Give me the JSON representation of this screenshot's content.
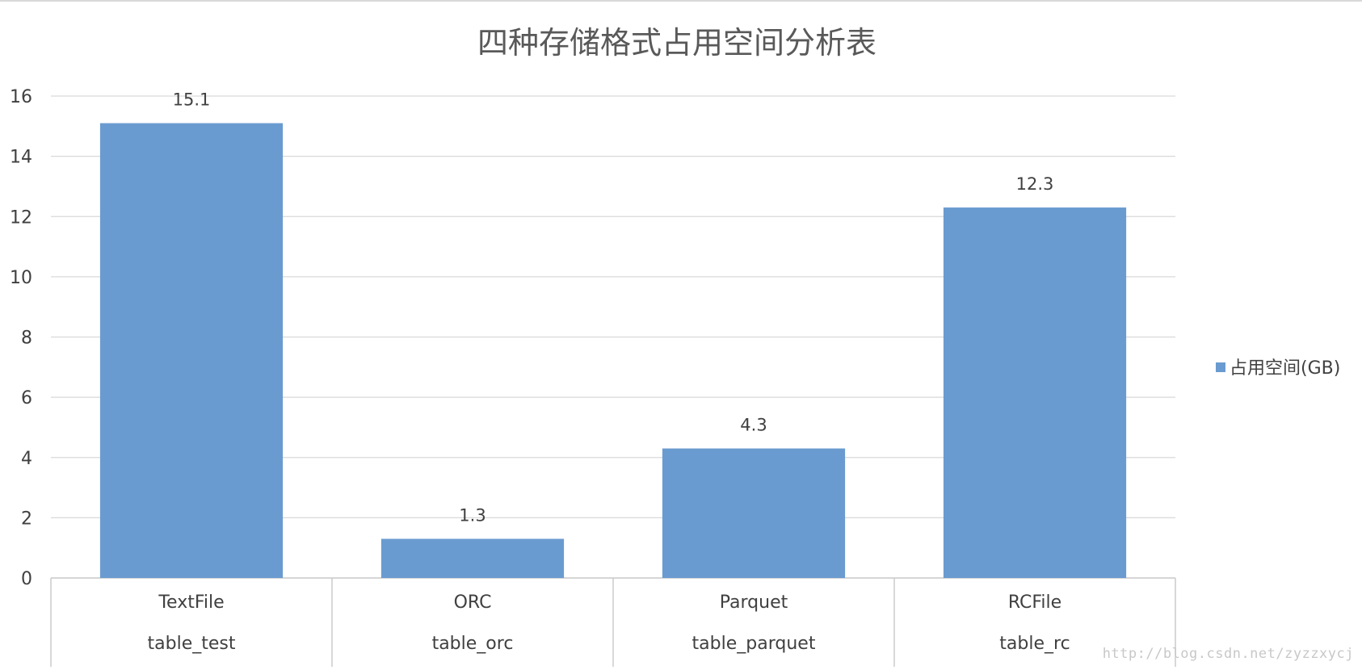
{
  "colors": {
    "bar": "#6a9bd0",
    "grid": "#d9d9d9",
    "axis": "#c8c8c8",
    "text": "#404040",
    "title": "#595959",
    "background": "#ffffff"
  },
  "chart_data": {
    "type": "bar",
    "title": "四种存储格式占用空间分析表",
    "xlabel": "",
    "ylabel": "",
    "categories": [
      [
        "TextFile",
        "table_test"
      ],
      [
        "ORC",
        "table_orc"
      ],
      [
        "Parquet",
        "table_parquet"
      ],
      [
        "RCFile",
        "table_rc"
      ]
    ],
    "series": [
      {
        "name": "占用空间(GB)",
        "color": "#6a9bd0",
        "values": [
          15.1,
          1.3,
          4.3,
          12.3
        ]
      }
    ],
    "ylim": [
      0,
      16
    ],
    "yticks": [
      0,
      2,
      4,
      6,
      8,
      10,
      12,
      14,
      16
    ],
    "grid": true,
    "legend_position": "right",
    "data_labels": true
  },
  "watermark": "http://blog.csdn.net/zyzzxycj"
}
